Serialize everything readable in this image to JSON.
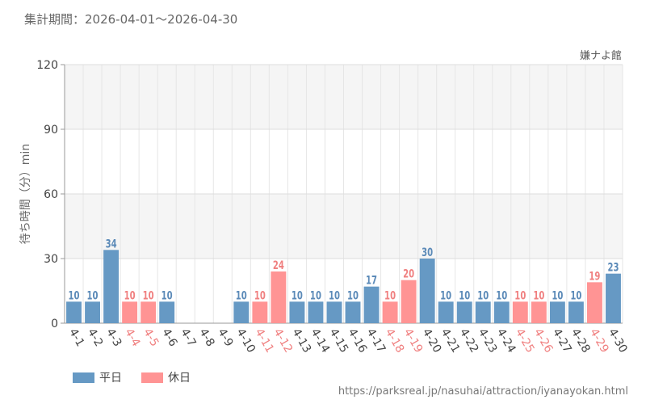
{
  "header": {
    "period": "集計期間：2026-04-01～2026-04-30"
  },
  "footer": {
    "source_url": "https://parksreal.jp/nasuhai/attraction/iyanayokan.html"
  },
  "legend": {
    "weekday_label": "平日",
    "holiday_label": "休日"
  },
  "colors": {
    "weekday": "#6699c4",
    "holiday": "#ff9494",
    "weekday_text": "#5b8ab8",
    "holiday_text": "#f08080",
    "band": "#f5f5f5"
  },
  "chart_data": {
    "type": "bar",
    "title": "嫌ナよ館",
    "ylabel": "待ち時間（分）min",
    "ylim": [
      0,
      120
    ],
    "yticks": [
      0,
      30,
      60,
      90,
      120
    ],
    "categories": [
      "4-1",
      "4-2",
      "4-3",
      "4-4",
      "4-5",
      "4-6",
      "4-7",
      "4-8",
      "4-9",
      "4-10",
      "4-11",
      "4-12",
      "4-13",
      "4-14",
      "4-15",
      "4-16",
      "4-17",
      "4-18",
      "4-19",
      "4-20",
      "4-21",
      "4-22",
      "4-23",
      "4-24",
      "4-25",
      "4-26",
      "4-27",
      "4-28",
      "4-29",
      "4-30"
    ],
    "values": [
      10,
      10,
      34,
      10,
      10,
      10,
      null,
      null,
      null,
      10,
      10,
      24,
      10,
      10,
      10,
      10,
      17,
      10,
      20,
      30,
      10,
      10,
      10,
      10,
      10,
      10,
      10,
      10,
      19,
      23
    ],
    "day_type": [
      "weekday",
      "weekday",
      "weekday",
      "holiday",
      "holiday",
      "weekday",
      "weekday",
      "weekday",
      "weekday",
      "weekday",
      "holiday",
      "holiday",
      "weekday",
      "weekday",
      "weekday",
      "weekday",
      "weekday",
      "holiday",
      "holiday",
      "weekday",
      "weekday",
      "weekday",
      "weekday",
      "weekday",
      "holiday",
      "holiday",
      "weekday",
      "weekday",
      "holiday",
      "weekday"
    ]
  }
}
